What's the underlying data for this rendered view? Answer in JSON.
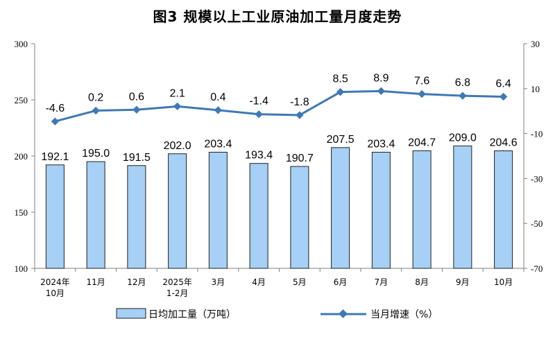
{
  "chart_data": {
    "type": "bar+line",
    "title": "图3  规模以上工业原油加工量月度走势",
    "categories": [
      [
        "2024年",
        "10月"
      ],
      [
        "11月"
      ],
      [
        "12月"
      ],
      [
        "2025年",
        "1-2月"
      ],
      [
        "3月"
      ],
      [
        "4月"
      ],
      [
        "5月"
      ],
      [
        "6月"
      ],
      [
        "7月"
      ],
      [
        "8月"
      ],
      [
        "9月"
      ],
      [
        "10月"
      ]
    ],
    "series": [
      {
        "name": "日均加工量（万吨）",
        "type": "bar",
        "axis": "left",
        "values": [
          192.1,
          195.0,
          191.5,
          202.0,
          203.4,
          193.4,
          190.7,
          207.5,
          203.4,
          204.7,
          209.0,
          204.6
        ],
        "labels": [
          "192.1",
          "195.0",
          "191.5",
          "202.0",
          "203.4",
          "193.4",
          "190.7",
          "207.5",
          "203.4",
          "204.7",
          "209.0",
          "204.6"
        ],
        "color": "#a6d0f5",
        "border": "#1f1f1f"
      },
      {
        "name": "当月增速（%）",
        "type": "line",
        "axis": "right",
        "values": [
          -4.6,
          0.2,
          0.6,
          2.1,
          0.4,
          -1.4,
          -1.8,
          8.5,
          8.9,
          7.6,
          6.8,
          6.4
        ],
        "labels": [
          "-4.6",
          "0.2",
          "0.6",
          "2.1",
          "0.4",
          "-1.4",
          "-1.8",
          "8.5",
          "8.9",
          "7.6",
          "6.8",
          "6.4"
        ],
        "color": "#3f78b4"
      }
    ],
    "yleft": {
      "min": 100,
      "max": 300,
      "ticks": [
        "100",
        "150",
        "200",
        "250",
        "300"
      ]
    },
    "yright": {
      "min": -70,
      "max": 30,
      "ticks": [
        "-70",
        "-50",
        "-30",
        "-10",
        "10",
        "30"
      ]
    },
    "grid": false,
    "legend": "bottom"
  }
}
